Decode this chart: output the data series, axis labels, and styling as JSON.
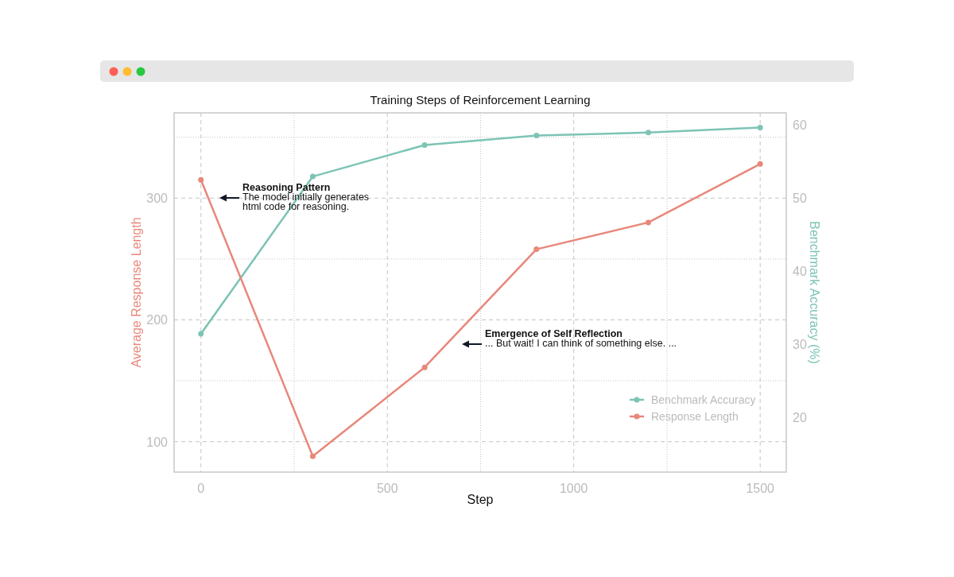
{
  "chart_data": {
    "type": "line",
    "title": "Training Steps of Reinforcement Learning",
    "xlabel": "Step",
    "ylabel": "Average Response Length",
    "y2label": "Benchmark Accuracy (%)",
    "x": [
      0,
      300,
      600,
      900,
      1200,
      1500
    ],
    "series": [
      {
        "name": "Benchmark Accuracy",
        "color": "#7dc4b5",
        "axis": "y2",
        "values": [
          31.4,
          52.9,
          57.2,
          58.5,
          58.9,
          59.6
        ]
      },
      {
        "name": "Response Length",
        "color": "#e8877a",
        "values": [
          315,
          88,
          161,
          258,
          280,
          328
        ]
      }
    ],
    "xlim": [
      -72,
      1570
    ],
    "xticks": [
      0,
      {
        "value": 250,
        "label": null
      },
      500,
      {
        "value": 750,
        "label": null
      },
      1000,
      {
        "value": 1250,
        "label": null
      },
      1500
    ],
    "ylim": [
      75,
      370
    ],
    "yticks": [
      100,
      {
        "value": 150,
        "label": null
      },
      200,
      {
        "value": 250,
        "label": null
      },
      300,
      {
        "value": 350,
        "label": null
      }
    ],
    "y2lim": [
      12.5,
      61.6
    ],
    "y2ticks": [
      20,
      30,
      40,
      50,
      60
    ],
    "annotations": [
      "Reasoning Pattern\nThe model initially generates\nhtml code for reasoning.",
      "Emergence of Self Reflection\n... But wait! I can think of something else. ..."
    ],
    "grid": true,
    "legend": "bottom right",
    "marker": "circle",
    "line_style": "solid"
  }
}
